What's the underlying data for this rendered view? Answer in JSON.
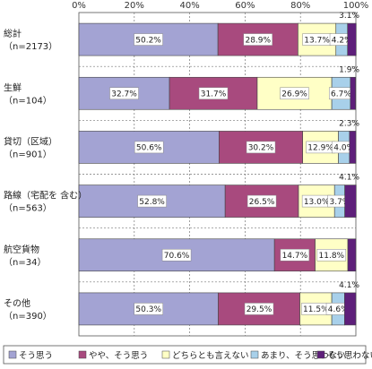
{
  "chart_data": {
    "type": "bar",
    "orientation": "horizontal",
    "stacked": "100%",
    "xlim": [
      0,
      100
    ],
    "x_ticks": [
      "0%",
      "20%",
      "40%",
      "60%",
      "80%",
      "100%"
    ],
    "categories": [
      {
        "name": "総計",
        "n": "（n=2173）"
      },
      {
        "name": "生鮮",
        "n": "（n=104）"
      },
      {
        "name": "貸切（区域）",
        "n": "（n=901）"
      },
      {
        "name": "路線（宅配を 含む）",
        "n": "（n=563）"
      },
      {
        "name": "航空貨物",
        "n": "（n=34）"
      },
      {
        "name": "その他",
        "n": "（n=390）"
      }
    ],
    "series": [
      {
        "name": "そう思う",
        "color": "#a3a3d3",
        "values": [
          50.2,
          32.7,
          50.6,
          52.8,
          70.6,
          50.3
        ]
      },
      {
        "name": "やや、そう思う",
        "color": "#a84a7e",
        "values": [
          28.9,
          31.7,
          30.2,
          26.5,
          14.7,
          29.5
        ]
      },
      {
        "name": "どちらとも言えない",
        "color": "#ffffc6",
        "values": [
          13.7,
          26.9,
          12.9,
          13.0,
          11.8,
          11.5
        ]
      },
      {
        "name": "あまり、そう思わない",
        "color": "#a8d0ea",
        "values": [
          4.2,
          6.7,
          4.0,
          3.7,
          0,
          4.6
        ]
      },
      {
        "name": "そう思わない",
        "color": "#5e1f7a",
        "values": [
          3.1,
          1.9,
          2.3,
          4.1,
          2.9,
          4.1
        ]
      }
    ],
    "data_labels": [
      [
        "50.2%",
        "28.9%",
        "13.7%",
        "4.2%",
        "3.1%"
      ],
      [
        "32.7%",
        "31.7%",
        "26.9%",
        "6.7%",
        "1.9%"
      ],
      [
        "50.6%",
        "30.2%",
        "12.9%",
        "4.0%",
        "2.3%"
      ],
      [
        "52.8%",
        "26.5%",
        "13.0%",
        "3.7%",
        "4.1%"
      ],
      [
        "70.6%",
        "14.7%",
        "11.8%",
        "",
        ""
      ],
      [
        "50.3%",
        "29.5%",
        "11.5%",
        "4.6%",
        "4.1%"
      ]
    ],
    "grid": true,
    "legend_position": "bottom"
  }
}
